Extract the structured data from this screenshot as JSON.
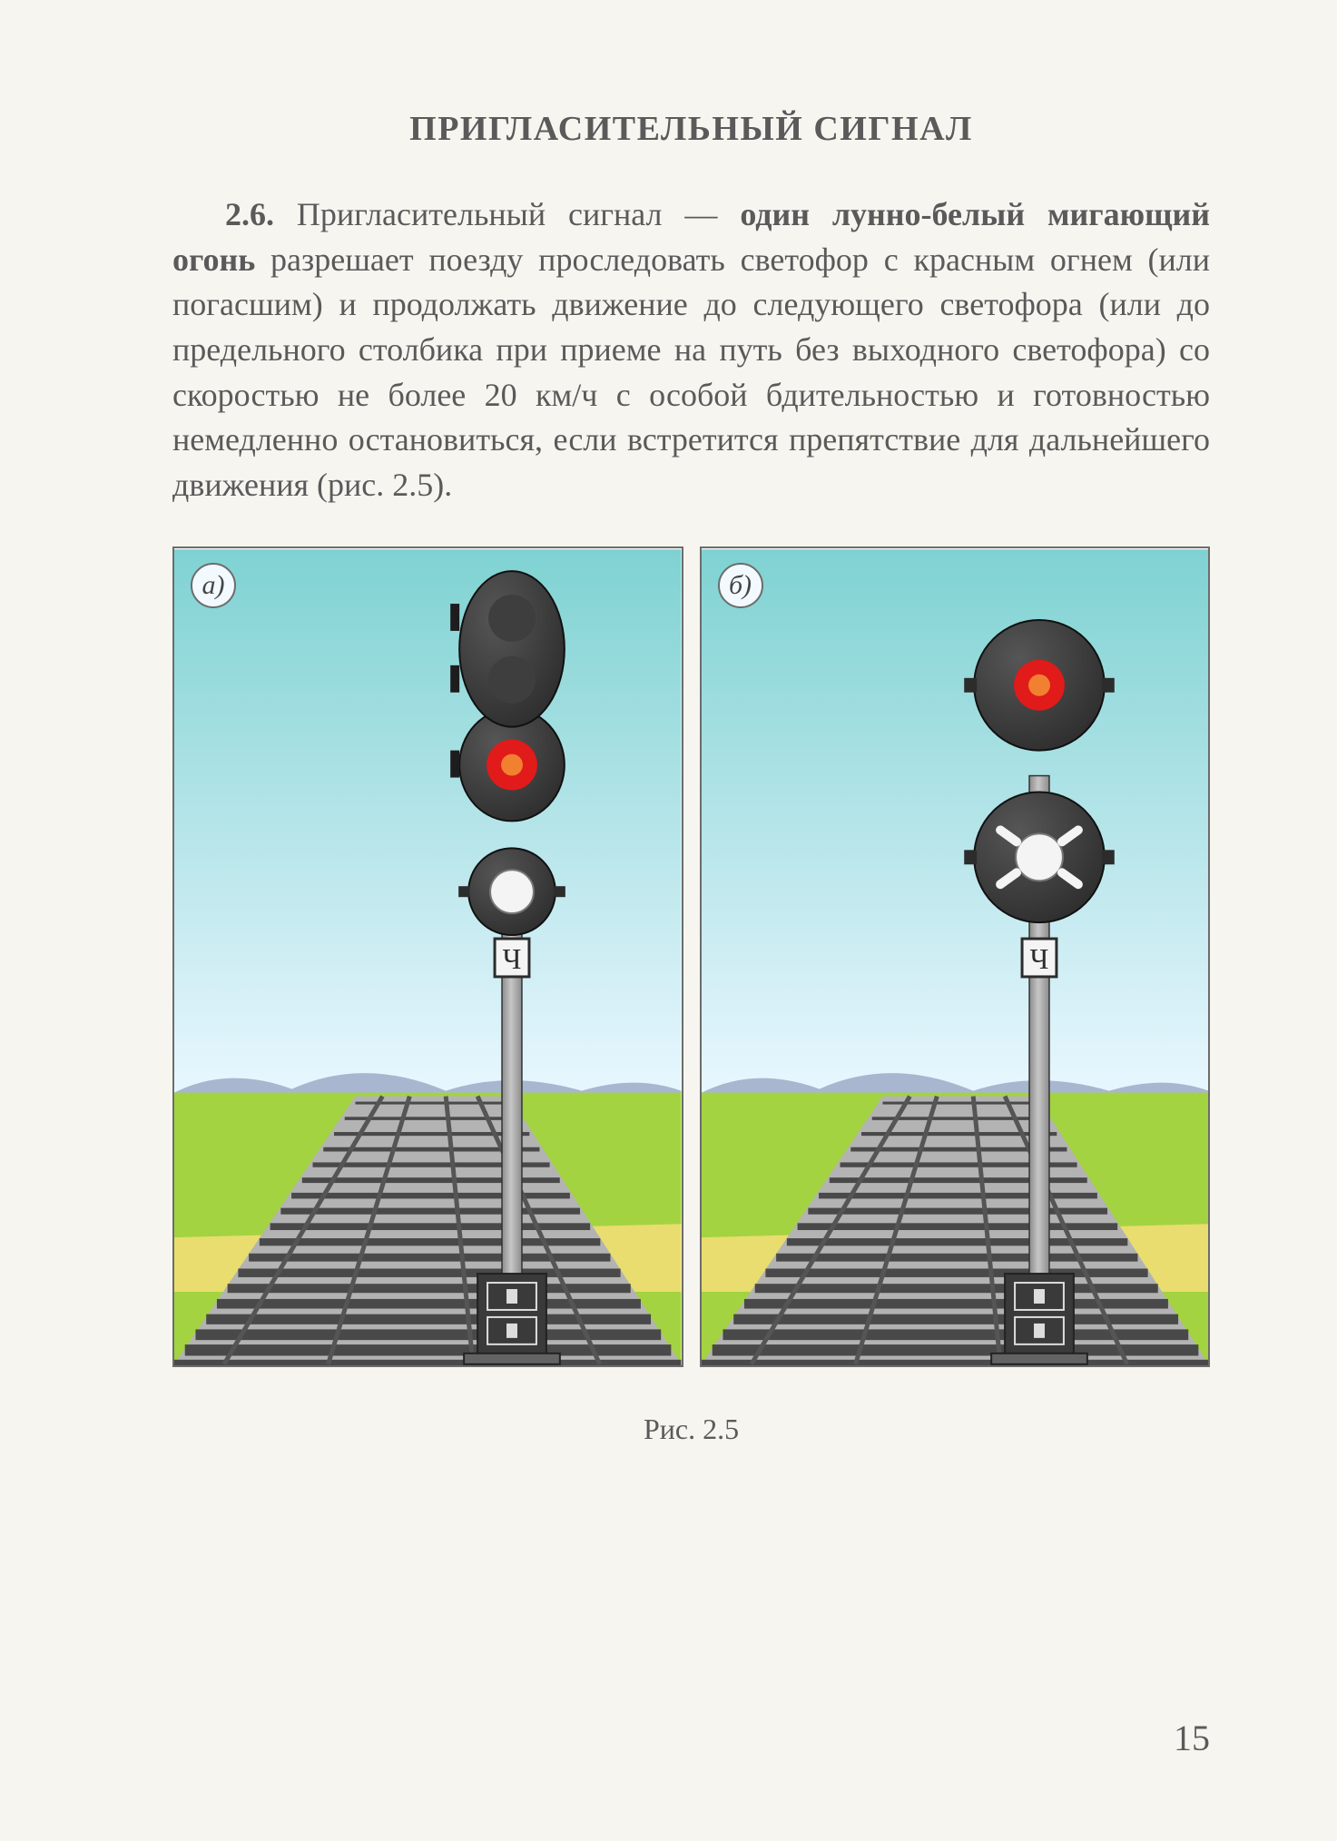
{
  "heading": "ПРИГЛАСИТЕЛЬНЫЙ СИГНАЛ",
  "paragraph": {
    "section_number": "2.6.",
    "lead_plain": " Пригласительный сигнал — ",
    "bold_span": "один лунно-белый мигающий огонь",
    "rest": " разрешает поезду проследовать светофор с красным огнем (или погасшим) и продолжать движение до следующего светофора (или до предельного столбика при приеме на путь без выходного светофора) со скоростью не более 20 км/ч с особой бдительностью и готовностью немедленно остановиться, если встретится препятствие для дальнейшего движения (рис. 2.5)."
  },
  "panels": {
    "a_label": "а)",
    "b_label": "б)",
    "sign_plate_letter": "Ч",
    "sky_top": "#7fd2d2",
    "sky_bottom": "#e9f7ff",
    "grass": "#a3d341",
    "platform": "#e9dd6f",
    "track_ballast": "#b3b3b3",
    "rail": "#555555",
    "sleeper": "#494949",
    "hill": "#a9b6d0",
    "signal_body": "#2c2c2c",
    "signal_body_hl": "#565656",
    "red_light": "#e11a1a",
    "white_light": "#f4f4f4",
    "off_light": "#3e3e3e",
    "pole": "#8c8c8c",
    "pole_light": "#c6c6c6",
    "plate_bg": "#f4f4f4",
    "plate_border": "#2c2c2c",
    "base_dark": "#3a3a3a",
    "base_mid": "#636363"
  },
  "caption": "Рис. 2.5",
  "page_number": "15"
}
